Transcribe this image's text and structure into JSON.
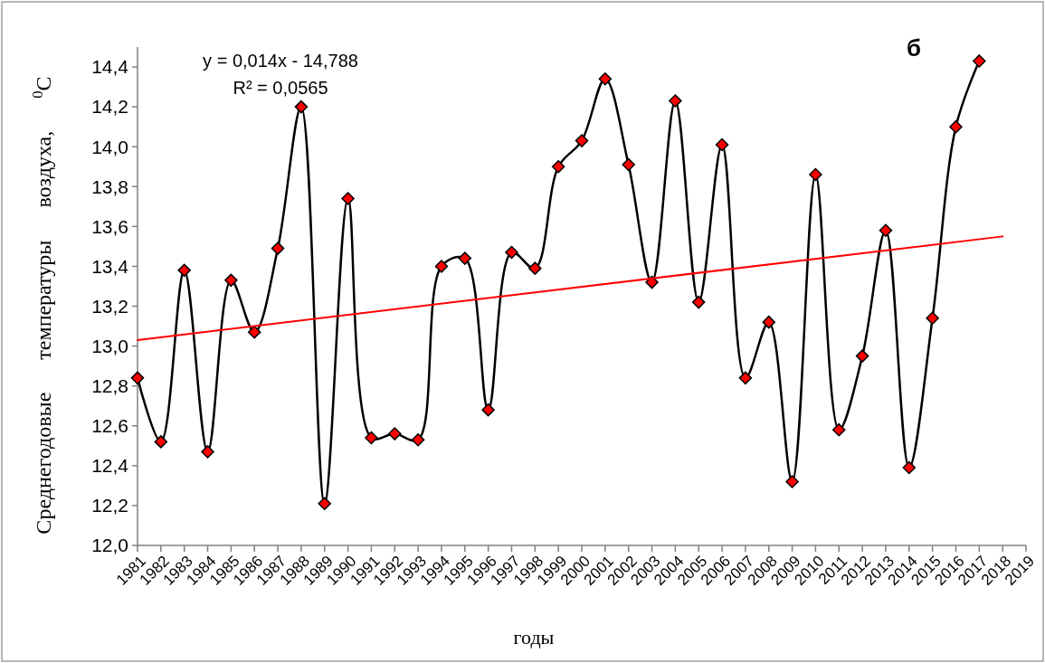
{
  "chart_data": {
    "type": "line",
    "title": "б",
    "xlabel": "годы",
    "ylabel": "Среднегодовые температуры воздуха, $^{0}$C",
    "annotations": [
      "y = 0,014x - 14,788",
      "R² = 0,0565"
    ],
    "xlim": [
      1981,
      2019
    ],
    "xticks": [
      1981,
      1982,
      1983,
      1984,
      1985,
      1986,
      1987,
      1988,
      1989,
      1990,
      1991,
      1992,
      1993,
      1994,
      1995,
      1996,
      1997,
      1998,
      1999,
      2000,
      2001,
      2002,
      2003,
      2004,
      2005,
      2006,
      2007,
      2008,
      2009,
      2010,
      2011,
      2012,
      2013,
      2014,
      2015,
      2016,
      2017,
      2018,
      2019
    ],
    "ylim": [
      12,
      14.5
    ],
    "yticks": [
      {
        "value": 12,
        "label": "12,0"
      },
      {
        "value": 12.2,
        "label": "12,2"
      },
      {
        "value": 12.4,
        "label": "12,4"
      },
      {
        "value": 12.6,
        "label": "12,6"
      },
      {
        "value": 12.8,
        "label": "12,8"
      },
      {
        "value": 13,
        "label": "13,0"
      },
      {
        "value": 13.2,
        "label": "13,2"
      },
      {
        "value": 13.4,
        "label": "13,4"
      },
      {
        "value": 13.6,
        "label": "13,6"
      },
      {
        "value": 13.8,
        "label": "13,8"
      },
      {
        "value": 14,
        "label": "14,0"
      },
      {
        "value": 14.2,
        "label": "14,2"
      },
      {
        "value": 14.4,
        "label": "14,4"
      }
    ],
    "grid": false,
    "marker": "diamond",
    "line_style": "solid",
    "series": [
      {
        "color": "#000000",
        "colors": [
          "#ff0000",
          "#ff0000",
          "#ff0000",
          "#ff0000",
          "#ff0000",
          "#ff0000",
          "#ff0000",
          "#ff0000",
          "#ff0000",
          "#ff0000",
          "#ff0000",
          "#ff0000",
          "#ff0000",
          "#ff0000",
          "#ff0000",
          "#ff0000",
          "#ff0000",
          "#ff0000",
          "#ff0000",
          "#ff0000",
          "#ff0000",
          "#ff0000",
          "#ff0000",
          "#ff0000",
          "#ff0000",
          "#ff0000",
          "#ff0000",
          "#ff0000",
          "#ff0000",
          "#ff0000",
          "#ff0000",
          "#ff0000",
          "#ff0000",
          "#ff0000",
          "#ff0000",
          "#ff0000",
          "#ff0000"
        ],
        "x": [
          1981,
          1982,
          1983,
          1984,
          1985,
          1986,
          1987,
          1988,
          1989,
          1990,
          1991,
          1992,
          1993,
          1994,
          1995,
          1996,
          1997,
          1998,
          1999,
          2000,
          2001,
          2002,
          2003,
          2004,
          2005,
          2006,
          2007,
          2008,
          2009,
          2010,
          2011,
          2012,
          2013,
          2014,
          2015,
          2016,
          2017
        ],
        "values": [
          12.84,
          12.52,
          13.38,
          12.47,
          13.33,
          13.07,
          13.49,
          14.2,
          12.21,
          13.74,
          12.54,
          12.56,
          12.53,
          13.4,
          13.44,
          12.68,
          13.47,
          13.39,
          13.9,
          14.03,
          14.34,
          13.91,
          13.32,
          14.23,
          13.22,
          14.01,
          12.84,
          13.12,
          12.32,
          13.86,
          12.58,
          12.95,
          13.58,
          12.39,
          13.14,
          14.1,
          14.43
        ]
      },
      {
        "type": "line",
        "color": "#ff0000",
        "marker": "none",
        "x": [
          1981,
          2018
        ],
        "values": [
          13.03,
          13.55
        ]
      }
    ]
  }
}
